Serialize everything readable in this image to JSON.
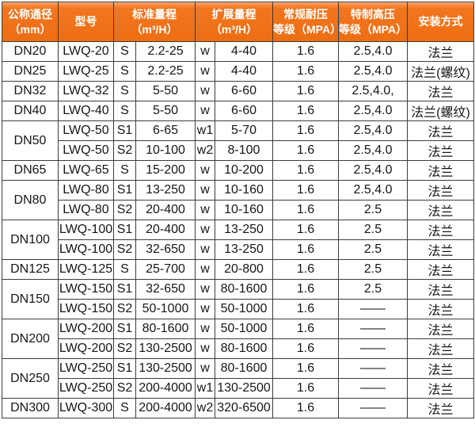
{
  "table": {
    "headers": [
      "公称通径\n（mm）",
      "型号",
      "标准量程\n（m³/H）",
      "扩展量程\n（m³/H）",
      "常规耐压\n等级（MPA）",
      "特制高压\n等级（MPA）",
      "安装方式"
    ],
    "groups": [
      {
        "dn": "DN20",
        "rows": [
          {
            "model": "LWQ-20",
            "s": "S",
            "std": "2.2-25",
            "w": "w",
            "ext": "4-40",
            "pn": "1.6",
            "hp": "2.5,4.0",
            "mount": "法兰"
          }
        ]
      },
      {
        "dn": "DN25",
        "rows": [
          {
            "model": "LWQ-25",
            "s": "S",
            "std": "2.2-25",
            "w": "w",
            "ext": "4-40",
            "pn": "1.6",
            "hp": "2.5,4.0",
            "mount": "法兰(螺纹)"
          }
        ]
      },
      {
        "dn": "DN32",
        "rows": [
          {
            "model": "LWQ-32",
            "s": "S",
            "std": "5-50",
            "w": "w",
            "ext": "6-60",
            "pn": "1.6",
            "hp": "2.5,4.0,",
            "mount": "法兰"
          }
        ]
      },
      {
        "dn": "DN40",
        "rows": [
          {
            "model": "LWQ-40",
            "s": "S",
            "std": "5-50",
            "w": "w",
            "ext": "6-60",
            "pn": "1.6",
            "hp": "2.5,4.0",
            "mount": "法兰(螺纹)"
          }
        ]
      },
      {
        "dn": "DN50",
        "rows": [
          {
            "model": "LWQ-50",
            "s": "S1",
            "std": "6-65",
            "w": "w1",
            "ext": "5-70",
            "pn": "1.6",
            "hp": "2.5,4.0",
            "mount": "法兰"
          },
          {
            "model": "LWQ-50",
            "s": "S2",
            "std": "10-100",
            "w": "w2",
            "ext": "8-100",
            "pn": "1.6",
            "hp": "2.5,4.0",
            "mount": "法兰"
          }
        ]
      },
      {
        "dn": "DN65",
        "rows": [
          {
            "model": "LWQ-65",
            "s": "S",
            "std": "15-200",
            "w": "w",
            "ext": "10-200",
            "pn": "1.6",
            "hp": "2.5,4.0",
            "mount": "法兰"
          }
        ]
      },
      {
        "dn": "DN80",
        "rows": [
          {
            "model": "LWQ-80",
            "s": "S1",
            "std": "13-250",
            "w": "w",
            "ext": "10-160",
            "pn": "1.6",
            "hp": "2.5,4.0",
            "mount": "法兰"
          },
          {
            "model": "LWQ-80",
            "s": "S2",
            "std": "20-400",
            "w": "w",
            "ext": "10-160",
            "pn": "1.6",
            "hp": "2.5",
            "mount": "法兰"
          }
        ]
      },
      {
        "dn": "DN100",
        "rows": [
          {
            "model": "LWQ-100",
            "s": "S1",
            "std": "20-400",
            "w": "w",
            "ext": "13-250",
            "pn": "1.6",
            "hp": "2.5",
            "mount": "法兰"
          },
          {
            "model": "LWQ-100",
            "s": "S2",
            "std": "32-650",
            "w": "w",
            "ext": "13-250",
            "pn": "1.6",
            "hp": "2.5",
            "mount": "法兰"
          }
        ]
      },
      {
        "dn": "DN125",
        "rows": [
          {
            "model": "LWQ-125",
            "s": "S",
            "std": "25-700",
            "w": "w",
            "ext": "20-800",
            "pn": "1.6",
            "hp": "2.5",
            "mount": "法兰"
          }
        ]
      },
      {
        "dn": "DN150",
        "rows": [
          {
            "model": "LWQ-150",
            "s": "S1",
            "std": "32-650",
            "w": "w",
            "ext": "80-1600",
            "pn": "1.6",
            "hp": "2.5",
            "mount": "法兰"
          },
          {
            "model": "LWQ-150",
            "s": "S2",
            "std": "50-1000",
            "w": "w",
            "ext": "50-1000",
            "pn": "1.6",
            "hp": "——",
            "mount": "法兰"
          }
        ]
      },
      {
        "dn": "DN200",
        "rows": [
          {
            "model": "LWQ-200",
            "s": "S1",
            "std": "80-1600",
            "w": "w",
            "ext": "50-1000",
            "pn": "1.6",
            "hp": "——",
            "mount": "法兰"
          },
          {
            "model": "LWQ-200",
            "s": "S2",
            "std": "130-2500",
            "w": "w",
            "ext": "80-1600",
            "pn": "1.6",
            "hp": "——",
            "mount": "法兰"
          }
        ]
      },
      {
        "dn": "DN250",
        "rows": [
          {
            "model": "LWQ-250",
            "s": "S1",
            "std": "130-2500",
            "w": "w",
            "ext": "80-1600",
            "pn": "1.6",
            "hp": "——",
            "mount": "法兰"
          },
          {
            "model": "LWQ-250",
            "s": "S2",
            "std": "200-4000",
            "w": "w1",
            "ext": "130-2500",
            "pn": "1.6",
            "hp": "——",
            "mount": "法兰"
          }
        ]
      },
      {
        "dn": "DN300",
        "rows": [
          {
            "model": "LWQ-300",
            "s": "S",
            "std": "200-4000",
            "w": "w2",
            "ext": "320-6500",
            "pn": "1.6",
            "hp": "——",
            "mount": "法兰"
          }
        ]
      }
    ],
    "colors": {
      "header_orange": "#ef7018",
      "header_text": "#ffffff",
      "grid_border": "#3c3c3c",
      "inner_divider": "#9b9b9b",
      "cell_text": "#161616"
    }
  }
}
